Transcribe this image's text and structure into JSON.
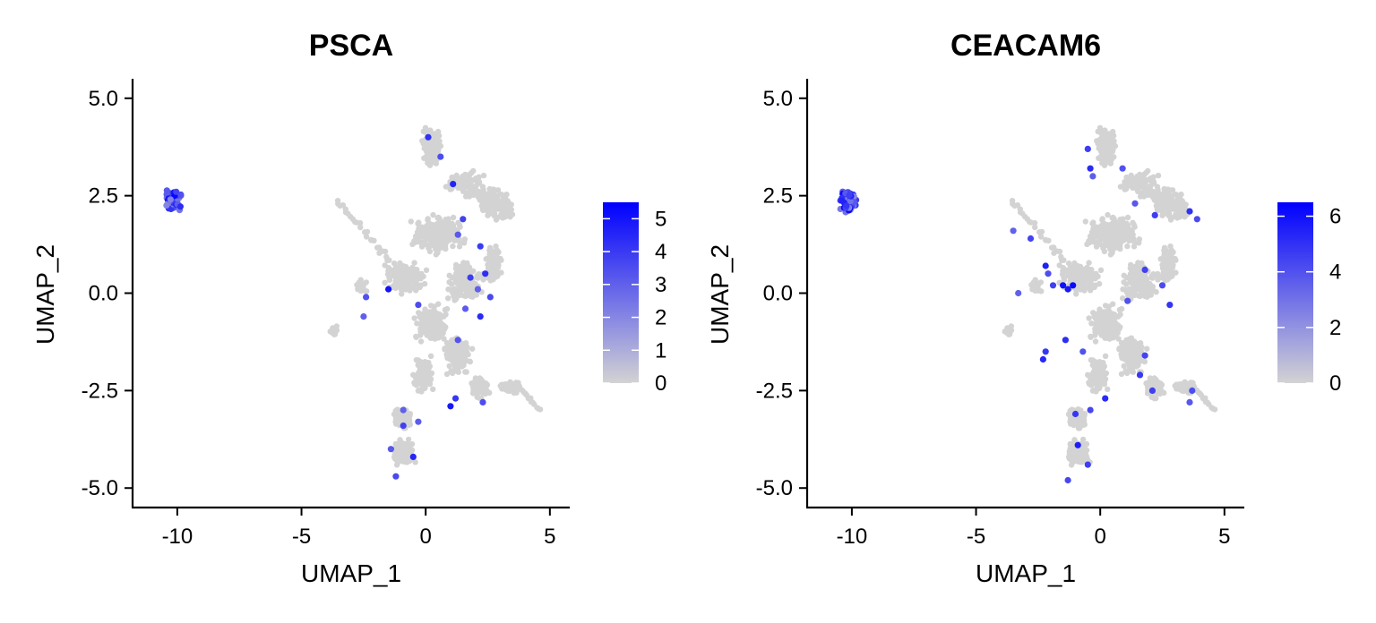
{
  "chart_data": [
    {
      "type": "scatter",
      "title": "PSCA",
      "xlabel": "UMAP_1",
      "ylabel": "UMAP_2",
      "xlim": [
        -11.8,
        5.8
      ],
      "ylim": [
        -5.5,
        5.5
      ],
      "xticks": [
        -10,
        -5,
        0,
        5
      ],
      "xtick_labels": [
        "-10",
        "-5",
        "0",
        "5"
      ],
      "yticks": [
        5.0,
        2.5,
        0.0,
        -2.5,
        -5.0
      ],
      "ytick_labels": [
        "5.0",
        "2.5",
        "0.0",
        "-2.5",
        "-5.0"
      ],
      "color_scale": {
        "low": "#d3d3d3",
        "high": "#0000ff",
        "min": 0,
        "max": 5.5
      },
      "colorbar_ticks": [
        0,
        1,
        2,
        3,
        4,
        5
      ],
      "colorbar_tick_labels": [
        "0",
        "1",
        "2",
        "3",
        "4",
        "5"
      ],
      "grid": false,
      "legend": "right",
      "highlight_points": [
        [
          0.1,
          4.0,
          4.2
        ],
        [
          0.6,
          3.5,
          3.5
        ],
        [
          1.1,
          2.8,
          4.6
        ],
        [
          1.5,
          1.9,
          3.8
        ],
        [
          1.3,
          1.5,
          3.2
        ],
        [
          2.2,
          1.2,
          4.0
        ],
        [
          -1.5,
          0.1,
          5.0
        ],
        [
          -0.3,
          -0.3,
          3.5
        ],
        [
          1.8,
          0.4,
          3.9
        ],
        [
          2.4,
          0.5,
          4.3
        ],
        [
          2.1,
          0.1,
          3.0
        ],
        [
          2.6,
          -0.1,
          3.6
        ],
        [
          1.6,
          -0.4,
          3.1
        ],
        [
          2.2,
          -0.6,
          4.4
        ],
        [
          1.3,
          -1.2,
          3.3
        ],
        [
          1.2,
          -2.7,
          4.1
        ],
        [
          -0.9,
          -3.0,
          3.0
        ],
        [
          -0.9,
          -3.4,
          3.8
        ],
        [
          -0.5,
          -4.2,
          4.5
        ],
        [
          -1.4,
          -4.0,
          3.2
        ],
        [
          1.0,
          -2.9,
          4.9
        ],
        [
          -2.4,
          -0.1,
          3.4
        ],
        [
          -2.5,
          -0.6,
          3.0
        ],
        [
          2.3,
          -2.8,
          3.5
        ],
        [
          -1.2,
          -4.7,
          3.6
        ],
        [
          -0.3,
          -3.3,
          3.1
        ]
      ]
    },
    {
      "type": "scatter",
      "title": "CEACAM6",
      "xlabel": "UMAP_1",
      "ylabel": "UMAP_2",
      "xlim": [
        -11.8,
        5.8
      ],
      "ylim": [
        -5.5,
        5.5
      ],
      "xticks": [
        -10,
        -5,
        0,
        5
      ],
      "xtick_labels": [
        "-10",
        "-5",
        "0",
        "5"
      ],
      "yticks": [
        5.0,
        2.5,
        0.0,
        -2.5,
        -5.0
      ],
      "ytick_labels": [
        "5.0",
        "2.5",
        "0.0",
        "-2.5",
        "-5.0"
      ],
      "color_scale": {
        "low": "#d3d3d3",
        "high": "#0000ff",
        "min": 0,
        "max": 6.5
      },
      "colorbar_ticks": [
        0,
        2,
        4,
        6
      ],
      "colorbar_tick_labels": [
        "0",
        "2",
        "4",
        "6"
      ],
      "grid": false,
      "legend": "right",
      "highlight_points": [
        [
          -0.5,
          3.7,
          4.6
        ],
        [
          -0.4,
          3.2,
          5.2
        ],
        [
          -0.3,
          3.0,
          3.6
        ],
        [
          0.9,
          3.2,
          4.0
        ],
        [
          1.4,
          2.3,
          3.8
        ],
        [
          2.2,
          2.0,
          4.6
        ],
        [
          3.6,
          2.1,
          5.0
        ],
        [
          3.9,
          1.9,
          4.2
        ],
        [
          -3.5,
          1.6,
          3.5
        ],
        [
          -2.8,
          1.4,
          4.4
        ],
        [
          -2.2,
          0.7,
          5.5
        ],
        [
          -2.1,
          0.5,
          4.1
        ],
        [
          -1.5,
          0.2,
          6.0
        ],
        [
          -1.3,
          0.1,
          5.8
        ],
        [
          -1.1,
          0.2,
          6.2
        ],
        [
          -1.9,
          0.2,
          4.5
        ],
        [
          -3.3,
          0.0,
          3.5
        ],
        [
          -2.3,
          -1.7,
          5.3
        ],
        [
          -2.2,
          -1.5,
          4.8
        ],
        [
          -1.4,
          -1.2,
          5.1
        ],
        [
          -0.7,
          -1.5,
          4.0
        ],
        [
          2.8,
          -0.3,
          4.9
        ],
        [
          2.5,
          0.2,
          4.2
        ],
        [
          1.8,
          0.6,
          4.5
        ],
        [
          1.1,
          -0.2,
          4.0
        ],
        [
          1.8,
          -1.6,
          4.4
        ],
        [
          1.6,
          -2.1,
          4.8
        ],
        [
          2.1,
          -2.5,
          4.6
        ],
        [
          0.2,
          -2.7,
          5.2
        ],
        [
          -0.4,
          -3.0,
          4.3
        ],
        [
          -1.0,
          -3.1,
          4.8
        ],
        [
          -0.9,
          -3.9,
          5.6
        ],
        [
          -0.5,
          -4.4,
          4.6
        ],
        [
          -1.3,
          -4.8,
          4.3
        ],
        [
          3.7,
          -2.5,
          4.1
        ],
        [
          3.6,
          -2.8,
          3.8
        ]
      ]
    }
  ]
}
